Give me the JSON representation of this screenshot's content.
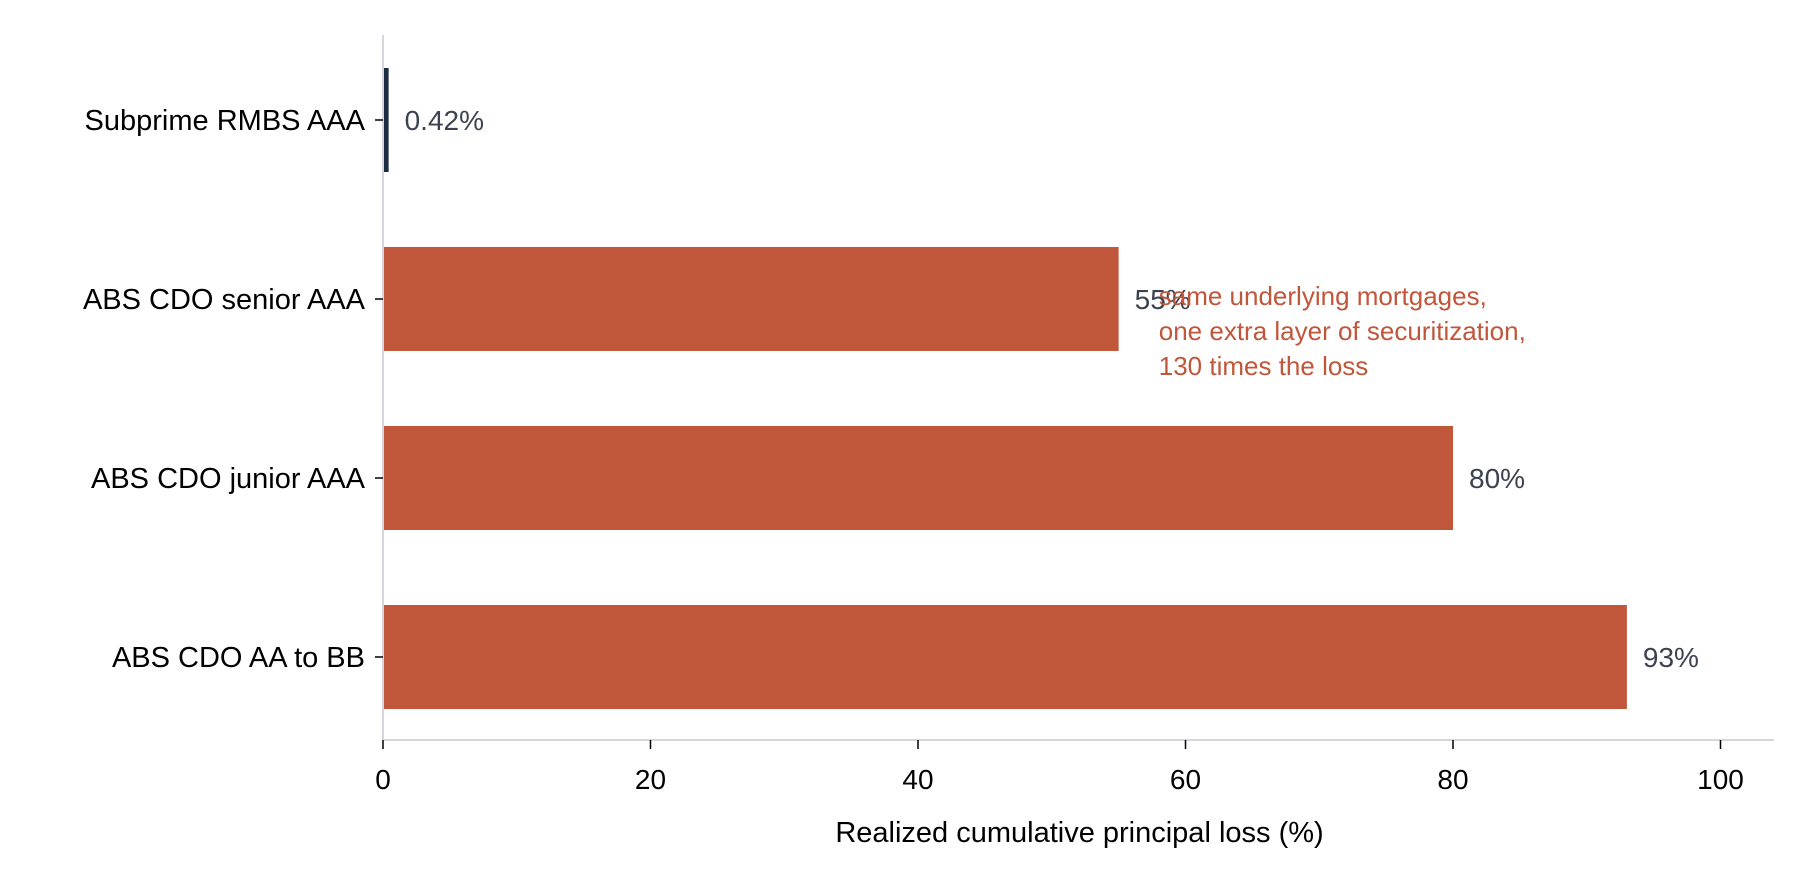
{
  "chart_data": {
    "type": "bar",
    "orientation": "horizontal",
    "categories": [
      "Subprime RMBS AAA",
      "ABS CDO senior AAA",
      "ABS CDO junior AAA",
      "ABS CDO AA to BB"
    ],
    "values": [
      0.42,
      55,
      80,
      93
    ],
    "value_labels": [
      "0.42%",
      "55%",
      "80%",
      "93%"
    ],
    "bar_colors": [
      "#1c2b45",
      "#c0563a",
      "#c0563a",
      "#c0563a"
    ],
    "xlabel": "Realized cumulative principal loss (%)",
    "xlim": [
      0,
      104
    ],
    "xticks": [
      0,
      20,
      40,
      60,
      80,
      100
    ],
    "xtick_labels": [
      "0",
      "20",
      "40",
      "60",
      "80",
      "100"
    ],
    "grid": false,
    "annotation": {
      "lines": [
        "same underlying mortgages,",
        "one extra layer of securitization,",
        "130 times the loss"
      ],
      "color": "#c0563a",
      "anchor_category": "ABS CDO senior AAA",
      "anchor_x": 58
    },
    "colors": {
      "axis": "#d3d6dc",
      "value_text": "#3c4250"
    }
  }
}
